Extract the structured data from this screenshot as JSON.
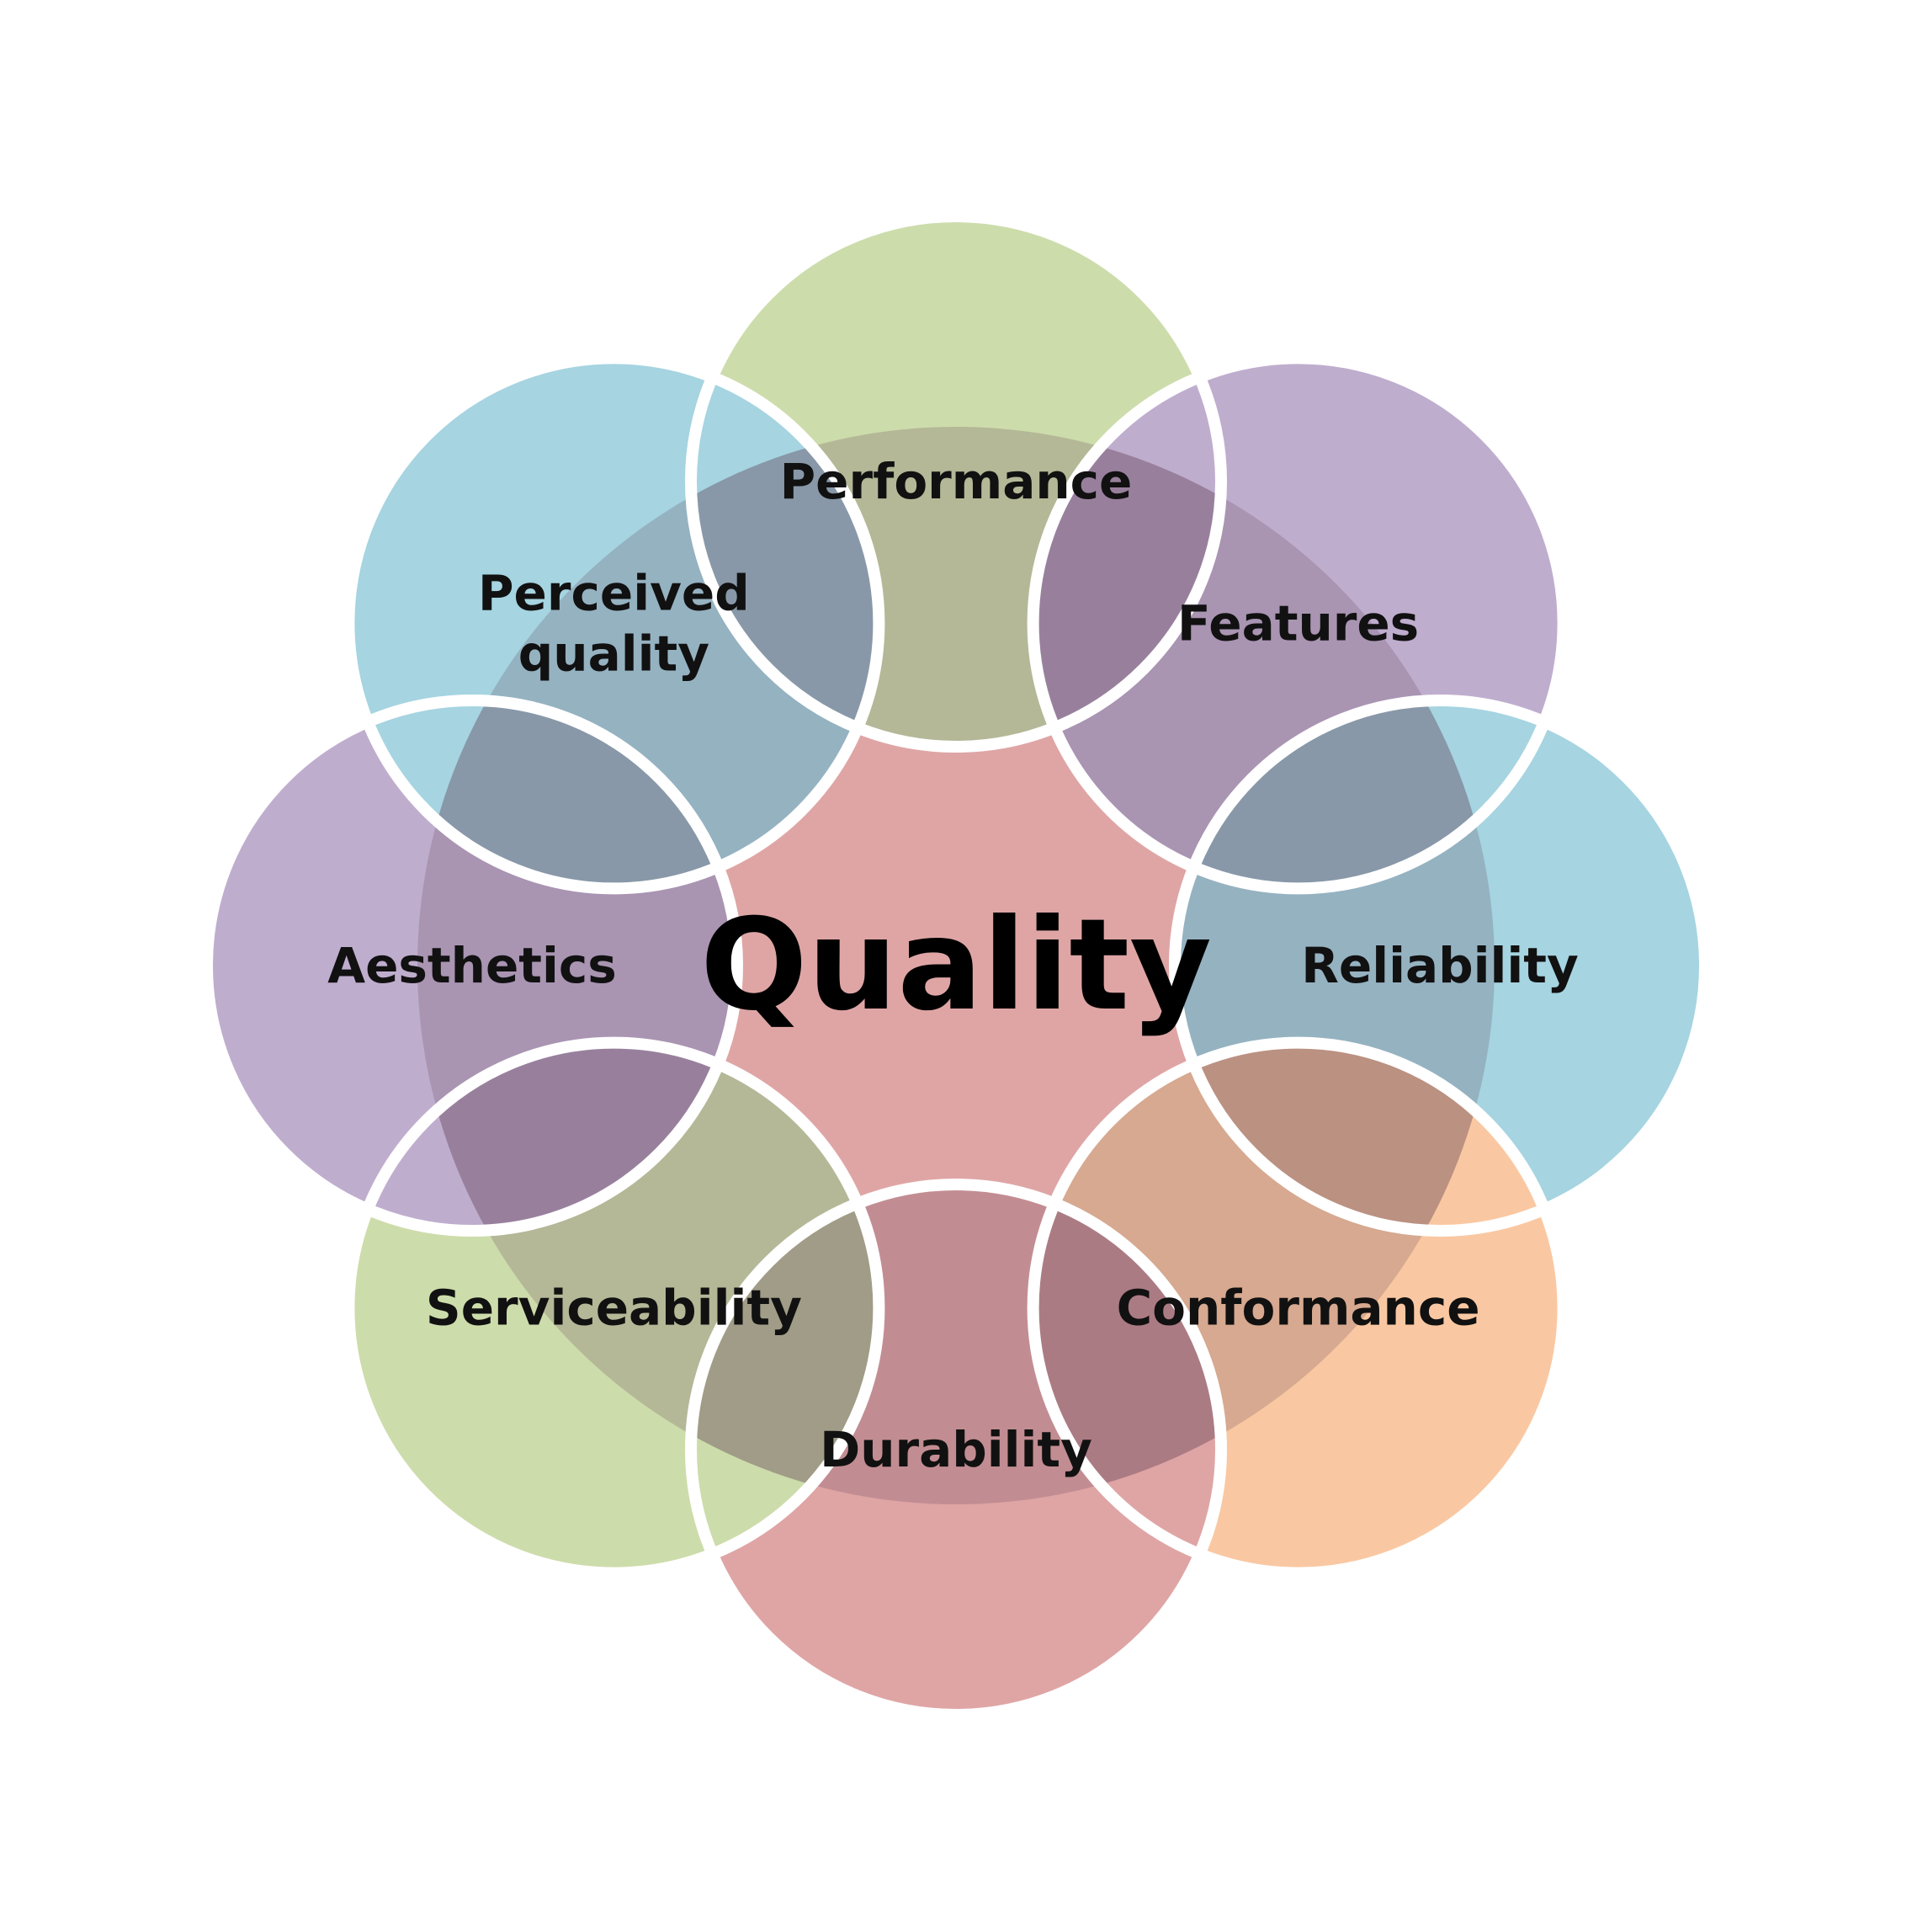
{
  "center": {
    "label": "Quality",
    "color": "#dfa5a5"
  },
  "nodes": [
    {
      "id": "performance",
      "lines": [
        "Performance"
      ],
      "color": "#cddcab"
    },
    {
      "id": "features",
      "lines": [
        "Features"
      ],
      "color": "#bfadce"
    },
    {
      "id": "reliability",
      "lines": [
        "Reliability"
      ],
      "color": "#a6d4e1"
    },
    {
      "id": "conformance",
      "lines": [
        "Conformance"
      ],
      "color": "#f9c8a2"
    },
    {
      "id": "durability",
      "lines": [
        "Durability"
      ],
      "color": "#dfa5a5"
    },
    {
      "id": "serviceability",
      "lines": [
        "Serviceability"
      ],
      "color": "#cddcab"
    },
    {
      "id": "aesthetics",
      "lines": [
        "Aesthetics"
      ],
      "color": "#bfadce"
    },
    {
      "id": "perceived-quality",
      "lines": [
        "Perceived",
        "quality"
      ],
      "color": "#a6d4e1"
    }
  ]
}
